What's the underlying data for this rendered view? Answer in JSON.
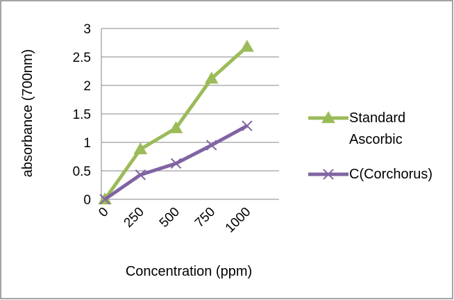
{
  "chart_data": {
    "type": "line",
    "categories": [
      "0",
      "250",
      "500",
      "750",
      "1000"
    ],
    "series": [
      {
        "name": "Standard Ascorbic",
        "name_lines": [
          "Standard",
          "Ascorbic"
        ],
        "values": [
          0,
          0.88,
          1.25,
          2.12,
          2.68
        ],
        "color": "#9BBB59",
        "marker": "triangle"
      },
      {
        "name": "C(Corchorus)",
        "name_lines": [
          "C(Corchorus)"
        ],
        "values": [
          0,
          0.43,
          0.63,
          0.95,
          1.29
        ],
        "color": "#8064A2",
        "marker": "x"
      }
    ],
    "title": "",
    "xlabel": "Concentration (ppm)",
    "ylabel": "absorbance (700nm)",
    "ylim": [
      0,
      3
    ],
    "yticks": [
      "0",
      "0.5",
      "1",
      "1.5",
      "2",
      "2.5",
      "3"
    ],
    "grid": true,
    "legend_position": "right"
  }
}
